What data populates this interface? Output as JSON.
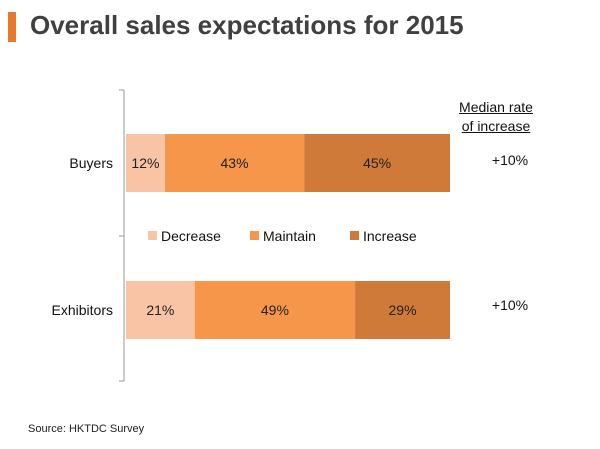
{
  "page": {
    "title": "Overall sales expectations for 2015",
    "source": "Source: HKTDC  Survey",
    "median_header": [
      "Median rate",
      "of increase"
    ],
    "accent_color": "#e8792b"
  },
  "chart_data": {
    "type": "bar",
    "stacked": true,
    "orientation": "horizontal",
    "categories": [
      "Buyers",
      "Exhibitors"
    ],
    "series": [
      {
        "name": "Decrease",
        "values": [
          12,
          21
        ],
        "labels": [
          "12%",
          "21%"
        ],
        "color": "#f9c3a5"
      },
      {
        "name": "Maintain",
        "values": [
          43,
          49
        ],
        "labels": [
          "43%",
          "49%"
        ],
        "color": "#f5964b"
      },
      {
        "name": "Increase",
        "values": [
          45,
          29
        ],
        "labels": [
          "45%",
          "29%"
        ],
        "color": "#cf7a38"
      }
    ],
    "median_rate_of_increase": [
      "+10%",
      "+10%"
    ],
    "legend_position": "between-bars",
    "grid": false
  }
}
